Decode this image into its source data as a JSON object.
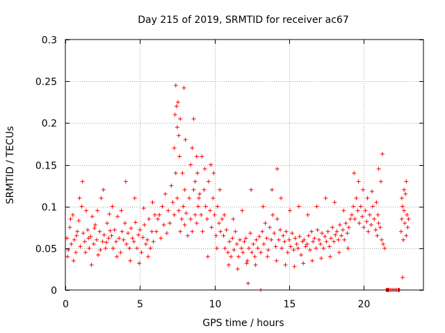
{
  "chart_data": {
    "type": "scatter",
    "title": "Day 215 of 2019, SRMTID for receiver ac67",
    "xlabel": "GPS time / hours",
    "ylabel": "SRMTID / TECUs",
    "xlim": [
      0,
      24
    ],
    "ylim": [
      0,
      0.3
    ],
    "xticks": [
      0,
      5,
      10,
      15,
      20
    ],
    "xtick_labels": [
      "0",
      "5",
      "10",
      "15",
      "20"
    ],
    "yticks": [
      0,
      0.05,
      0.1,
      0.15,
      0.2,
      0.25,
      0.3
    ],
    "ytick_labels": [
      "0",
      "0.05",
      "0.1",
      "0.15",
      "0.2",
      "0.25",
      "0.3"
    ],
    "grid": true,
    "marker": "+",
    "color": "#ff0000",
    "series": [
      {
        "name": "SRMTID",
        "x": [
          0.1,
          0.2,
          0.3,
          0.4,
          0.5,
          0.6,
          0.7,
          0.8,
          0.9,
          1.0,
          1.1,
          1.2,
          1.3,
          1.4,
          1.5,
          1.6,
          1.7,
          1.8,
          1.9,
          2.0,
          2.1,
          2.2,
          2.3,
          2.4,
          2.5,
          2.6,
          2.7,
          2.8,
          2.9,
          3.0,
          0.15,
          0.35,
          0.55,
          0.75,
          0.95,
          1.15,
          1.35,
          1.55,
          1.75,
          1.95,
          2.15,
          2.35,
          2.55,
          2.75,
          2.95,
          3.1,
          3.2,
          3.3,
          3.4,
          3.5,
          3.6,
          3.7,
          3.8,
          3.9,
          4.0,
          4.1,
          4.2,
          4.3,
          4.4,
          4.5,
          4.6,
          4.7,
          4.8,
          4.9,
          5.0,
          5.1,
          5.2,
          5.3,
          5.4,
          5.5,
          5.6,
          5.7,
          5.8,
          5.9,
          6.0,
          3.15,
          3.45,
          3.75,
          4.05,
          4.35,
          4.65,
          4.95,
          5.25,
          5.55,
          5.85,
          6.1,
          6.2,
          6.3,
          6.4,
          6.5,
          6.6,
          6.7,
          6.8,
          6.9,
          7.0,
          7.1,
          7.2,
          7.3,
          7.4,
          7.5,
          7.6,
          7.7,
          7.8,
          7.9,
          8.0,
          8.1,
          8.2,
          8.3,
          8.4,
          8.5,
          8.6,
          8.7,
          8.8,
          8.9,
          9.0,
          7.3,
          7.35,
          7.4,
          7.45,
          7.5,
          7.55,
          7.6,
          7.65,
          7.7,
          7.85,
          7.95,
          8.0,
          8.05,
          8.4,
          8.5,
          8.6,
          8.7,
          8.8,
          8.85,
          8.95,
          9.1,
          9.2,
          9.3,
          9.4,
          9.5,
          9.6,
          9.7,
          9.8,
          9.9,
          10.0,
          10.1,
          10.2,
          10.3,
          10.4,
          10.5,
          9.15,
          9.35,
          9.55,
          9.75,
          9.95,
          10.15,
          10.35,
          10.6,
          10.7,
          10.8,
          10.9,
          11.0,
          11.1,
          11.2,
          11.3,
          11.4,
          11.5,
          11.6,
          11.7,
          11.8,
          11.9,
          12.0,
          12.1,
          12.2,
          12.3,
          12.4,
          12.5,
          12.6,
          12.7,
          12.8,
          12.9,
          13.0,
          10.65,
          10.95,
          11.25,
          11.55,
          11.85,
          12.15,
          12.45,
          12.75,
          12.25,
          13.1,
          13.2,
          13.3,
          13.4,
          13.5,
          13.6,
          13.7,
          13.8,
          13.9,
          14.0,
          14.1,
          14.2,
          14.3,
          14.4,
          14.5,
          14.6,
          14.7,
          14.8,
          14.9,
          15.0,
          15.1,
          15.2,
          15.3,
          15.4,
          15.5,
          15.6,
          15.7,
          15.8,
          15.9,
          16.0,
          16.1,
          13.25,
          13.55,
          13.85,
          14.15,
          14.45,
          14.75,
          15.05,
          15.35,
          15.65,
          15.95,
          14.2,
          16.2,
          16.3,
          16.4,
          16.5,
          16.6,
          16.7,
          16.8,
          16.9,
          17.0,
          17.1,
          17.2,
          17.3,
          17.4,
          17.5,
          17.6,
          17.7,
          17.8,
          17.9,
          18.0,
          18.1,
          18.2,
          18.3,
          18.4,
          18.5,
          18.6,
          18.7,
          18.8,
          18.9,
          19.0,
          19.1,
          16.25,
          16.55,
          16.85,
          17.15,
          17.45,
          17.75,
          18.05,
          18.35,
          18.65,
          18.95,
          19.2,
          19.3,
          19.4,
          19.5,
          19.6,
          19.7,
          19.8,
          19.9,
          20.0,
          20.1,
          20.2,
          20.3,
          20.4,
          20.5,
          20.6,
          20.7,
          20.8,
          20.9,
          21.0,
          21.1,
          21.2,
          21.3,
          21.4,
          19.35,
          19.65,
          19.95,
          20.25,
          20.55,
          20.85,
          21.15,
          21.25,
          21.0,
          20.95,
          22.5,
          22.55,
          22.6,
          22.65,
          22.7,
          22.75,
          22.8,
          22.85,
          22.9,
          22.95,
          23.0,
          22.55,
          22.7,
          22.85,
          22.6,
          21.5,
          21.55,
          21.6,
          21.65,
          21.7,
          21.8,
          21.9,
          22.0,
          22.1,
          22.2,
          22.3,
          22.35,
          22.4,
          13.1
        ],
        "y": [
          0.062,
          0.048,
          0.075,
          0.055,
          0.09,
          0.06,
          0.045,
          0.07,
          0.083,
          0.052,
          0.1,
          0.068,
          0.058,
          0.095,
          0.072,
          0.05,
          0.064,
          0.088,
          0.055,
          0.078,
          0.06,
          0.042,
          0.07,
          0.11,
          0.058,
          0.066,
          0.05,
          0.08,
          0.062,
          0.071,
          0.04,
          0.085,
          0.035,
          0.065,
          0.11,
          0.13,
          0.045,
          0.062,
          0.03,
          0.074,
          0.095,
          0.048,
          0.12,
          0.057,
          0.091,
          0.065,
          0.05,
          0.072,
          0.058,
          0.088,
          0.062,
          0.045,
          0.07,
          0.06,
          0.08,
          0.055,
          0.068,
          0.05,
          0.074,
          0.062,
          0.058,
          0.081,
          0.05,
          0.066,
          0.072,
          0.045,
          0.063,
          0.078,
          0.055,
          0.06,
          0.085,
          0.05,
          0.07,
          0.058,
          0.09,
          0.1,
          0.04,
          0.095,
          0.13,
          0.035,
          0.11,
          0.032,
          0.098,
          0.04,
          0.105,
          0.07,
          0.085,
          0.09,
          0.062,
          0.1,
          0.078,
          0.115,
          0.068,
          0.095,
          0.08,
          0.125,
          0.105,
          0.09,
          0.14,
          0.11,
          0.095,
          0.07,
          0.085,
          0.1,
          0.078,
          0.092,
          0.065,
          0.11,
          0.085,
          0.07,
          0.12,
          0.09,
          0.08,
          0.1,
          0.115,
          0.17,
          0.21,
          0.245,
          0.22,
          0.195,
          0.225,
          0.185,
          0.16,
          0.205,
          0.14,
          0.242,
          0.12,
          0.18,
          0.15,
          0.17,
          0.205,
          0.13,
          0.16,
          0.14,
          0.11,
          0.09,
          0.07,
          0.12,
          0.1,
          0.085,
          0.13,
          0.095,
          0.075,
          0.11,
          0.09,
          0.065,
          0.1,
          0.08,
          0.07,
          0.085,
          0.16,
          0.145,
          0.04,
          0.15,
          0.14,
          0.05,
          0.12,
          0.065,
          0.05,
          0.072,
          0.045,
          0.058,
          0.04,
          0.062,
          0.048,
          0.07,
          0.055,
          0.04,
          0.06,
          0.05,
          0.045,
          0.058,
          0.062,
          0.035,
          0.05,
          0.068,
          0.045,
          0.055,
          0.04,
          0.06,
          0.05,
          0.064,
          0.09,
          0.03,
          0.085,
          0.025,
          0.095,
          0.032,
          0.12,
          0.03,
          0.008,
          0.045,
          0.07,
          0.055,
          0.08,
          0.062,
          0.048,
          0.075,
          0.06,
          0.09,
          0.068,
          0.052,
          0.085,
          0.06,
          0.072,
          0.05,
          0.065,
          0.058,
          0.07,
          0.045,
          0.06,
          0.052,
          0.068,
          0.048,
          0.062,
          0.055,
          0.05,
          0.064,
          0.042,
          0.058,
          0.06,
          0.052,
          0.1,
          0.04,
          0.12,
          0.035,
          0.11,
          0.03,
          0.095,
          0.028,
          0.1,
          0.032,
          0.145,
          0.055,
          0.065,
          0.048,
          0.07,
          0.058,
          0.062,
          0.05,
          0.072,
          0.06,
          0.055,
          0.068,
          0.05,
          0.064,
          0.058,
          0.07,
          0.052,
          0.062,
          0.075,
          0.058,
          0.066,
          0.07,
          0.06,
          0.078,
          0.065,
          0.072,
          0.06,
          0.08,
          0.068,
          0.075,
          0.085,
          0.09,
          0.035,
          0.1,
          0.038,
          0.11,
          0.04,
          0.105,
          0.045,
          0.095,
          0.05,
          0.09,
          0.1,
          0.085,
          0.11,
          0.095,
          0.08,
          0.1,
          0.088,
          0.075,
          0.095,
          0.082,
          0.07,
          0.09,
          0.078,
          0.1,
          0.085,
          0.072,
          0.065,
          0.08,
          0.075,
          0.06,
          0.055,
          0.05,
          0.14,
          0.13,
          0.12,
          0.11,
          0.118,
          0.105,
          0.13,
          0.163,
          0.145,
          0.09,
          0.07,
          0.085,
          0.1,
          0.06,
          0.095,
          0.08,
          0.115,
          0.065,
          0.09,
          0.075,
          0.085,
          0.11,
          0.12,
          0.13,
          0.015,
          0.0,
          0.0,
          0.0,
          0.0,
          0.0,
          0.0,
          0.0,
          0.0,
          0.0,
          0.0,
          0.0,
          0.0,
          0.0,
          0.0
        ]
      }
    ]
  }
}
